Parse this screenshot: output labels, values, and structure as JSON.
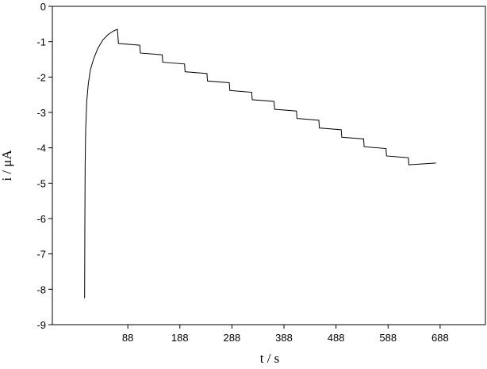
{
  "chart_data": {
    "type": "line",
    "xlabel": "t / s",
    "ylabel": "i / μA",
    "xlim": [
      -57,
      775
    ],
    "ylim": [
      -9,
      0
    ],
    "xticks": [
      88,
      188,
      288,
      388,
      488,
      588,
      688
    ],
    "yticks": [
      0,
      -1,
      -2,
      -3,
      -4,
      -5,
      -6,
      -7,
      -8,
      -9
    ],
    "series": [
      {
        "color": "#000000",
        "x": [
          5,
          5.5,
          6,
          7,
          9,
          12,
          16,
          22,
          30,
          40,
          50,
          60,
          68,
          70,
          111,
          112,
          154,
          155,
          197,
          198,
          240,
          241,
          283,
          284,
          326,
          327,
          369,
          370,
          412,
          413,
          455,
          456,
          498,
          499,
          541,
          542,
          584,
          585,
          627,
          628,
          680
        ],
        "values": [
          -8.25,
          -6,
          -4.5,
          -3.5,
          -2.7,
          -2.2,
          -1.8,
          -1.5,
          -1.2,
          -0.95,
          -0.8,
          -0.7,
          -0.65,
          -1.05,
          -1.1,
          -1.32,
          -1.37,
          -1.58,
          -1.63,
          -1.85,
          -1.9,
          -2.11,
          -2.16,
          -2.38,
          -2.43,
          -2.64,
          -2.69,
          -2.91,
          -2.96,
          -3.17,
          -3.22,
          -3.44,
          -3.49,
          -3.7,
          -3.75,
          -3.97,
          -4.02,
          -4.23,
          -4.28,
          -4.48,
          -4.43
        ]
      }
    ]
  }
}
